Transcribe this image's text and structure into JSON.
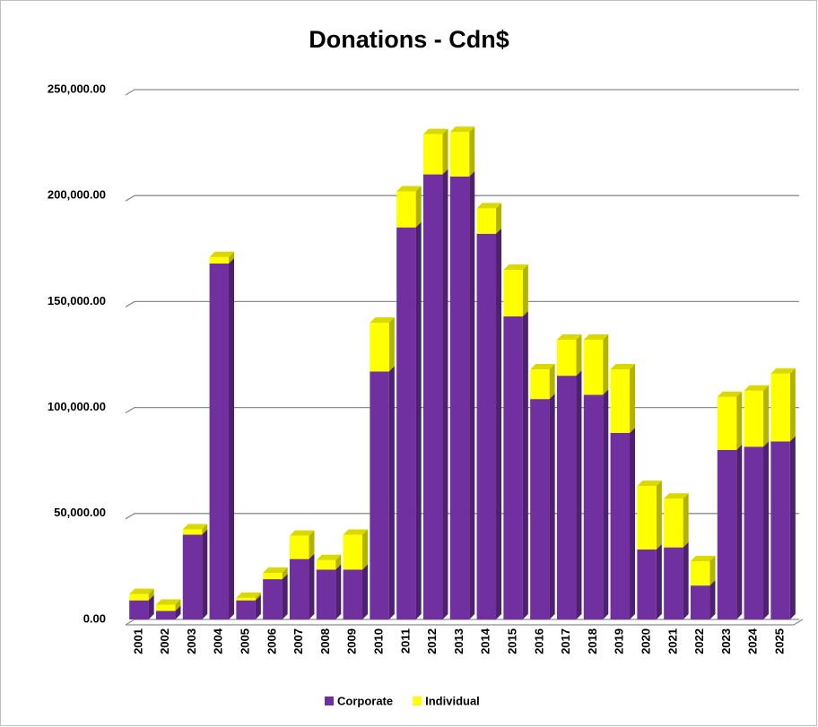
{
  "chart_data": {
    "type": "bar",
    "stacked": true,
    "title": "Donations - Cdn$",
    "categories": [
      "2001",
      "2002",
      "2003",
      "2004",
      "2005",
      "2006",
      "2007",
      "2008",
      "2009",
      "2010",
      "2011",
      "2012",
      "2013",
      "2014",
      "2015",
      "2016",
      "2017",
      "2018",
      "2019",
      "2020",
      "2021",
      "2022",
      "2023",
      "2024",
      "2025"
    ],
    "series": [
      {
        "name": "Corporate",
        "color": "#7030a0",
        "values": [
          9000,
          4000,
          40000,
          168000,
          9000,
          19000,
          28500,
          23500,
          23500,
          117000,
          185000,
          210000,
          209000,
          182000,
          143000,
          104000,
          115000,
          106000,
          88000,
          33000,
          34000,
          16000,
          80000,
          81500,
          84000
        ]
      },
      {
        "name": "Individual",
        "color": "#ffff00",
        "values": [
          3000,
          3000,
          2500,
          3000,
          1200,
          3000,
          11000,
          4500,
          16500,
          23000,
          17000,
          19000,
          21000,
          12000,
          22000,
          14000,
          17000,
          26000,
          30000,
          30000,
          23000,
          11500,
          25000,
          26500,
          32000
        ]
      }
    ],
    "ylim": [
      0,
      250000
    ],
    "yticks": [
      {
        "value": 0,
        "label": "0.00"
      },
      {
        "value": 50000,
        "label": "50,000.00"
      },
      {
        "value": 100000,
        "label": "100,000.00"
      },
      {
        "value": 150000,
        "label": "150,000.00"
      },
      {
        "value": 200000,
        "label": "200,000.00"
      },
      {
        "value": 250000,
        "label": "250,000.00"
      }
    ],
    "grid": true,
    "legend": "bottom"
  }
}
